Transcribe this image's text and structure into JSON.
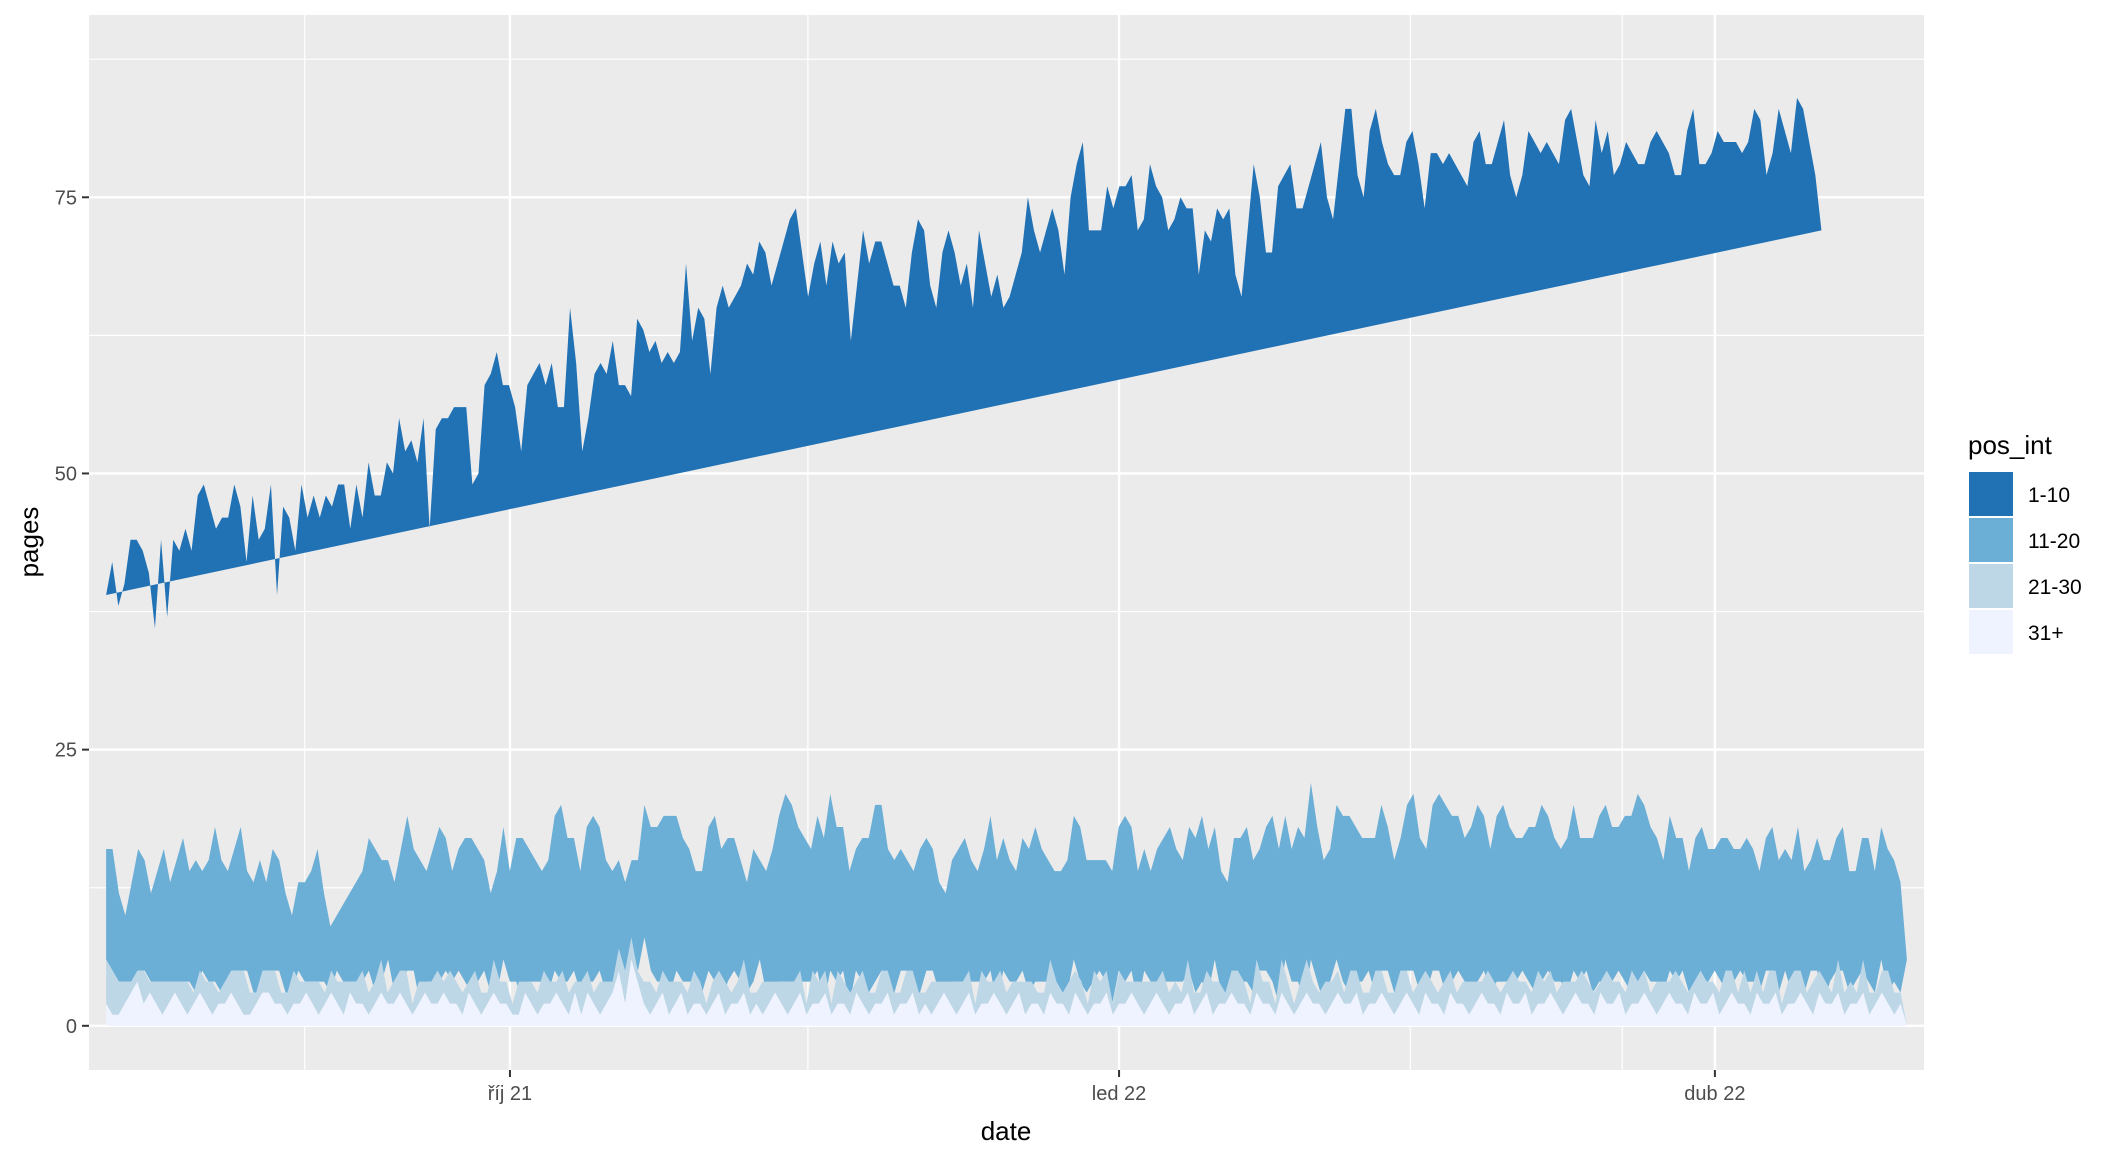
{
  "chart_data": {
    "type": "area",
    "stacked": true,
    "xlabel": "date",
    "ylabel": "pages",
    "x_start": "2021-08-01",
    "x_end": "2022-04-30",
    "x_ticks": [
      {
        "date": "2021-10-01",
        "label": "říj 21"
      },
      {
        "date": "2022-01-01",
        "label": "led 22"
      },
      {
        "date": "2022-04-01",
        "label": "dub 22"
      }
    ],
    "x_minor_ticks": [
      "2021-08-31",
      "2021-11-15",
      "2022-02-14",
      "2022-03-18"
    ],
    "ylim": [
      -4,
      91.5
    ],
    "y_ticks": [
      0,
      25,
      50,
      75
    ],
    "grid": true,
    "panel_background": "#ebebeb",
    "legend": {
      "title": "pos_int",
      "placement": "right",
      "entries": [
        "1-10",
        "11-20",
        "21-30",
        "31+"
      ]
    },
    "colors": {
      "1-10": "#2171b5",
      "11-20": "#6baed6",
      "21-30": "#bdd7e7",
      "31+": "#eff3ff"
    },
    "series": [
      {
        "name": "31+",
        "values": [
          2,
          1,
          1,
          2,
          3,
          4,
          2,
          3,
          2,
          1,
          2,
          3,
          2,
          1,
          2,
          3,
          2,
          1,
          2,
          2,
          3,
          2,
          1,
          1,
          2,
          3,
          3,
          2,
          2,
          1,
          2,
          2,
          3,
          2,
          1,
          2,
          3,
          2,
          1,
          3,
          2,
          2,
          1,
          2,
          3,
          2,
          2,
          3,
          2,
          1,
          2,
          3,
          2,
          2,
          3,
          2,
          2,
          1,
          3,
          2,
          1,
          2,
          3,
          2,
          2,
          1,
          1,
          3,
          2,
          1,
          2,
          2,
          3,
          2,
          1,
          3,
          1,
          3,
          2,
          1,
          2,
          3,
          5,
          2,
          6,
          4,
          2,
          1,
          2,
          3,
          1,
          2,
          3,
          1,
          2,
          2,
          1,
          2,
          3,
          1,
          2,
          2,
          3,
          1,
          2,
          1,
          2,
          3,
          2,
          1,
          2,
          3,
          1,
          2,
          2,
          3,
          1,
          2,
          2,
          1,
          3,
          2,
          1,
          2,
          2,
          3,
          1,
          2,
          2,
          3,
          1,
          2,
          1,
          2,
          3,
          2,
          1,
          2,
          3,
          1,
          2,
          2,
          3,
          2,
          1,
          2,
          3,
          1,
          2,
          2,
          1,
          3,
          2,
          2,
          1,
          3,
          2,
          1,
          2,
          2,
          3,
          1,
          2,
          2,
          3,
          2,
          1,
          2,
          3,
          2,
          1,
          2,
          2,
          3,
          1,
          2,
          3,
          1,
          2,
          2,
          3,
          2,
          2,
          1,
          3,
          2,
          2,
          1,
          3,
          2,
          1,
          2,
          3,
          2,
          2,
          1,
          2,
          3,
          2,
          2,
          3,
          1,
          2,
          2,
          3,
          2,
          1,
          2,
          3,
          2,
          1,
          3,
          2,
          2,
          1,
          3,
          2,
          2,
          1,
          2,
          3,
          2,
          2,
          1,
          3,
          2,
          2,
          3,
          1,
          2,
          2,
          3,
          2,
          1,
          2,
          3,
          2,
          2,
          1,
          3,
          2,
          2,
          3,
          1,
          2,
          2,
          3,
          2,
          1,
          2,
          3,
          2,
          2,
          1,
          3,
          2,
          2,
          3,
          1,
          2,
          3,
          2,
          2,
          1,
          3,
          2,
          2,
          3,
          1,
          2,
          2,
          3,
          2,
          1,
          3,
          2,
          2,
          3,
          1,
          2,
          2,
          3,
          1,
          2,
          3,
          2,
          1,
          2,
          0
        ]
      },
      {
        "name": "21-30",
        "values": [
          4,
          4,
          3,
          2,
          1,
          1,
          3,
          1,
          2,
          3,
          2,
          1,
          2,
          3,
          1,
          2,
          2,
          3,
          1,
          2,
          2,
          3,
          4,
          2,
          1,
          2,
          2,
          3,
          1,
          2,
          3,
          2,
          1,
          2,
          3,
          1,
          2,
          2,
          3,
          1,
          2,
          3,
          2,
          2,
          3,
          1,
          2,
          2,
          3,
          1,
          2,
          1,
          2,
          3,
          1,
          3,
          2,
          2,
          1,
          3,
          2,
          1,
          3,
          2,
          2,
          1,
          3,
          1,
          2,
          2,
          3,
          2,
          1,
          3,
          2,
          1,
          3,
          2,
          1,
          3,
          2,
          1,
          2,
          3,
          2,
          1,
          2,
          3,
          1,
          2,
          3,
          2,
          1,
          2,
          3,
          2,
          1,
          2,
          2,
          3,
          1,
          2,
          3,
          2,
          1,
          3,
          2,
          1,
          2,
          3,
          2,
          2,
          1,
          3,
          2,
          2,
          1,
          3,
          2,
          2,
          1,
          3,
          2,
          1,
          3,
          2,
          2,
          1,
          3,
          2,
          2,
          1,
          3,
          2,
          1,
          2,
          3,
          2,
          2,
          1,
          3,
          2,
          1,
          3,
          2,
          2,
          1,
          3,
          2,
          1,
          2,
          3,
          2,
          1,
          3,
          2,
          2,
          1,
          3,
          2,
          2,
          1,
          3,
          2,
          1,
          2,
          3,
          2,
          1,
          3,
          2,
          2,
          1,
          3,
          2,
          1,
          2,
          3,
          2,
          1,
          2,
          3,
          2,
          1,
          3,
          2,
          2,
          1,
          3,
          2,
          1,
          2,
          3,
          2,
          1,
          3,
          2,
          2,
          1,
          3,
          2,
          2,
          1,
          3,
          2,
          1,
          2,
          3,
          2,
          1,
          3,
          2,
          2,
          1,
          3,
          2,
          1,
          2,
          3,
          2,
          1,
          3,
          2,
          2,
          1,
          3,
          2,
          1,
          2,
          3,
          2,
          2,
          1,
          3,
          2,
          1,
          3,
          2,
          2,
          1,
          3,
          2,
          1,
          2,
          3,
          2,
          2,
          1,
          3,
          2,
          1,
          3,
          2,
          2,
          1,
          3,
          2,
          1,
          2,
          3,
          2,
          1,
          3,
          2,
          2,
          1,
          3,
          2,
          1,
          2,
          3,
          2,
          1,
          3,
          2,
          2,
          1,
          3,
          2,
          2,
          1,
          3,
          2,
          1,
          2,
          3,
          2,
          1,
          0
        ]
      },
      {
        "name": "11-20",
        "values": [
          10,
          11,
          8,
          6,
          9,
          11,
          10,
          8,
          10,
          12,
          9,
          11,
          13,
          10,
          12,
          9,
          11,
          14,
          12,
          10,
          11,
          13,
          9,
          10,
          12,
          8,
          11,
          10,
          9,
          7,
          8,
          9,
          10,
          12,
          8,
          6,
          5,
          7,
          8,
          9,
          10,
          12,
          13,
          11,
          9,
          10,
          12,
          14,
          11,
          13,
          10,
          12,
          14,
          12,
          10,
          11,
          13,
          14,
          12,
          10,
          9,
          11,
          12,
          10,
          13,
          15,
          12,
          11,
          10,
          12,
          14,
          16,
          13,
          12,
          11,
          14,
          15,
          13,
          12,
          10,
          11,
          9,
          8,
          10,
          12,
          13,
          14,
          15,
          16,
          14,
          13,
          12,
          10,
          11,
          13,
          15,
          14,
          13,
          12,
          11,
          10,
          12,
          9,
          11,
          13,
          15,
          17,
          16,
          14,
          13,
          12,
          14,
          15,
          16,
          14,
          13,
          12,
          11,
          13,
          14,
          16,
          15,
          13,
          12,
          11,
          10,
          11,
          13,
          12,
          11,
          10,
          9,
          11,
          12,
          13,
          11,
          10,
          12,
          14,
          13,
          12,
          11,
          10,
          12,
          13,
          14,
          12,
          11,
          10,
          11,
          12,
          13,
          14,
          12,
          11,
          10,
          11,
          12,
          13,
          15,
          13,
          12,
          11,
          10,
          12,
          13,
          14,
          12,
          11,
          13,
          14,
          15,
          13,
          12,
          11,
          10,
          12,
          13,
          14,
          12,
          11,
          13,
          15,
          14,
          13,
          12,
          14,
          15,
          16,
          14,
          13,
          12,
          14,
          15,
          16,
          14,
          13,
          12,
          14,
          15,
          13,
          12,
          14,
          15,
          16,
          14,
          13,
          15,
          16,
          17,
          15,
          14,
          13,
          15,
          16,
          14,
          13,
          15,
          16,
          14,
          13,
          12,
          14,
          15,
          16,
          14,
          13,
          12,
          14,
          15,
          13,
          12,
          14,
          15,
          16,
          14,
          13,
          15,
          16,
          17,
          15,
          14,
          13,
          12,
          14,
          13,
          12,
          11,
          13,
          14,
          12,
          11,
          13,
          14,
          12,
          11,
          13,
          12,
          11,
          12,
          13,
          12,
          11,
          12,
          13,
          11,
          10,
          12,
          13,
          11,
          12,
          13,
          11,
          10,
          12,
          13,
          11,
          12,
          13,
          11,
          10,
          0
        ]
      },
      {
        "name": "1-10",
        "values": [
          23,
          26,
          26,
          30,
          31,
          28,
          28,
          29,
          22,
          28,
          24,
          29,
          26,
          31,
          28,
          34,
          34,
          29,
          30,
          32,
          30,
          31,
          33,
          29,
          33,
          31,
          29,
          34,
          27,
          37,
          33,
          30,
          35,
          30,
          36,
          37,
          38,
          36,
          37,
          36,
          31,
          32,
          30,
          36,
          33,
          35,
          35,
          31,
          39,
          37,
          39,
          35,
          37,
          28,
          40,
          39,
          38,
          39,
          40,
          41,
          37,
          36,
          40,
          45,
          44,
          41,
          42,
          41,
          38,
          43,
          40,
          40,
          41,
          43,
          42,
          38,
          46,
          42,
          37,
          41,
          44,
          47,
          44,
          47,
          38,
          40,
          39,
          45,
          44,
          42,
          45,
          44,
          47,
          46,
          43,
          50,
          46,
          48,
          47,
          44,
          52,
          51,
          50,
          52,
          51,
          50,
          47,
          51,
          52,
          50,
          53,
          52,
          56,
          53,
          52,
          48,
          55,
          55,
          50,
          54,
          49,
          50,
          46,
          52,
          56,
          54,
          57,
          55,
          52,
          51,
          54,
          53,
          55,
          57,
          55,
          52,
          51,
          54,
          53,
          55,
          50,
          54,
          51,
          55,
          53,
          48,
          52,
          50,
          52,
          54,
          55,
          56,
          54,
          55,
          57,
          59,
          57,
          54,
          57,
          59,
          62,
          58,
          56,
          58,
          60,
          57,
          58,
          60,
          62,
          54,
          56,
          59,
          60,
          57,
          58,
          60,
          58,
          57,
          56,
          53,
          56,
          53,
          55,
          57,
          55,
          52,
          48,
          55,
          56,
          57,
          55,
          54,
          56,
          58,
          59,
          56,
          57,
          59,
          61,
          60,
          57,
          58,
          61,
          63,
          62,
          60,
          59,
          61,
          62,
          60,
          59,
          58,
          60,
          62,
          61,
          59,
          58,
          60,
          59,
          60,
          62,
          61,
          59,
          58,
          60,
          62,
          61,
          62,
          63,
          62,
          60,
          58,
          60,
          62,
          60,
          61,
          62,
          60,
          59,
          61,
          63,
          62,
          60,
          61,
          63,
          62,
          64,
          63,
          61,
          62,
          63,
          62,
          61,
          63,
          65,
          64,
          62,
          61,
          63,
          64,
          65,
          63,
          62,
          64,
          63,
          66,
          65,
          63,
          64,
          65,
          66,
          64,
          63,
          65,
          66,
          64,
          65,
          66,
          67,
          65,
          64,
          66,
          65,
          67,
          68,
          66,
          65,
          67,
          68,
          66,
          67,
          68,
          65,
          64,
          72,
          40
        ]
      }
    ]
  }
}
